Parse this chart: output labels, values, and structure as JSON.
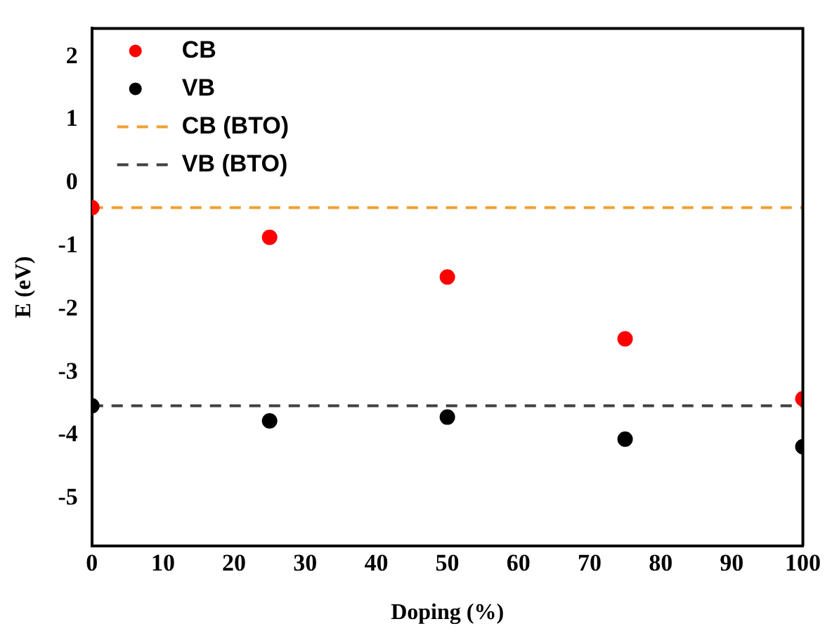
{
  "chart_data": {
    "type": "scatter",
    "xlabel": "Doping (%)",
    "ylabel": "E (eV)",
    "xlim": [
      0,
      100
    ],
    "xticks": [
      0,
      10,
      20,
      30,
      40,
      50,
      60,
      70,
      80,
      90,
      100
    ],
    "ylim": [
      -5.75,
      2.45
    ],
    "yticks": [
      -5,
      -4,
      -3,
      -2,
      -1,
      0,
      1,
      2
    ],
    "grid": false,
    "legend": "top left",
    "marker": "circle",
    "series": [
      {
        "name": "CB",
        "color": "#ff0000",
        "x": [
          0,
          25,
          50,
          75,
          100
        ],
        "values": [
          -0.39,
          -0.86,
          -1.49,
          -2.47,
          -3.42
        ]
      },
      {
        "name": "VB",
        "color": "#000000",
        "x": [
          0,
          25,
          50,
          75,
          100
        ],
        "values": [
          -3.53,
          -3.77,
          -3.71,
          -4.06,
          -4.18
        ]
      },
      {
        "name": "CB (BTO)",
        "type": "line",
        "line_style": "dashed",
        "marker": "none",
        "color": "#f0a030",
        "x": [
          0,
          100
        ],
        "values": [
          -0.39,
          -0.39
        ]
      },
      {
        "name": "VB (BTO)",
        "type": "line",
        "line_style": "dashed",
        "marker": "none",
        "color": "#404040",
        "x": [
          0,
          100
        ],
        "values": [
          -3.53,
          -3.53
        ]
      }
    ]
  }
}
